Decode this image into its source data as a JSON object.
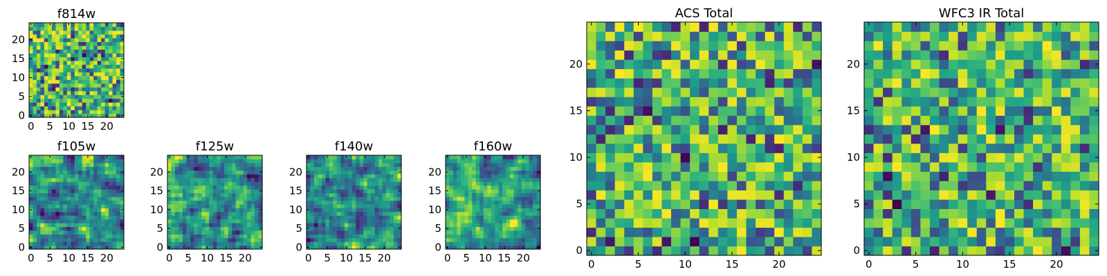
{
  "chart_data": [
    {
      "type": "heatmap",
      "title": "f814w",
      "grid_size": 25,
      "xlim": [
        0,
        24
      ],
      "ylim": [
        0,
        24
      ],
      "xticks": [
        0,
        5,
        10,
        15,
        20
      ],
      "yticks": [
        0,
        5,
        10,
        15,
        20
      ],
      "xlabel": "",
      "ylabel": "",
      "colormap": "viridis",
      "seed": 11,
      "texture": "noise"
    },
    {
      "type": "heatmap",
      "title": "f105w",
      "grid_size": 25,
      "xlim": [
        0,
        24
      ],
      "ylim": [
        0,
        24
      ],
      "xticks": [
        0,
        5,
        10,
        15,
        20
      ],
      "yticks": [
        0,
        5,
        10,
        15,
        20
      ],
      "xlabel": "",
      "ylabel": "",
      "colormap": "viridis",
      "seed": 23,
      "texture": "smooth"
    },
    {
      "type": "heatmap",
      "title": "f125w",
      "grid_size": 25,
      "xlim": [
        0,
        24
      ],
      "ylim": [
        0,
        24
      ],
      "xticks": [
        0,
        5,
        10,
        15,
        20
      ],
      "yticks": [
        0,
        5,
        10,
        15,
        20
      ],
      "xlabel": "",
      "ylabel": "",
      "colormap": "viridis",
      "seed": 37,
      "texture": "smooth"
    },
    {
      "type": "heatmap",
      "title": "f140w",
      "grid_size": 25,
      "xlim": [
        0,
        24
      ],
      "ylim": [
        0,
        24
      ],
      "xticks": [
        0,
        5,
        10,
        15,
        20
      ],
      "yticks": [
        0,
        5,
        10,
        15,
        20
      ],
      "xlabel": "",
      "ylabel": "",
      "colormap": "viridis",
      "seed": 41,
      "texture": "smooth"
    },
    {
      "type": "heatmap",
      "title": "f160w",
      "grid_size": 25,
      "xlim": [
        0,
        24
      ],
      "ylim": [
        0,
        24
      ],
      "xticks": [
        0,
        5,
        10,
        15,
        20
      ],
      "yticks": [
        0,
        5,
        10,
        15,
        20
      ],
      "xlabel": "",
      "ylabel": "",
      "colormap": "viridis",
      "seed": 53,
      "texture": "smooth"
    },
    {
      "type": "heatmap",
      "title": "ACS Total",
      "grid_size": 25,
      "xlim": [
        0,
        24
      ],
      "ylim": [
        0,
        24
      ],
      "xticks": [
        0,
        5,
        10,
        15,
        20
      ],
      "yticks": [
        0,
        5,
        10,
        15,
        20
      ],
      "xlabel": "",
      "ylabel": "",
      "colormap": "viridis",
      "seed": 67,
      "texture": "blocky"
    },
    {
      "type": "heatmap",
      "title": "WFC3 IR Total",
      "grid_size": 25,
      "xlim": [
        0,
        24
      ],
      "ylim": [
        0,
        24
      ],
      "xticks": [
        0,
        5,
        10,
        15,
        20
      ],
      "yticks": [
        0,
        5,
        10,
        15,
        20
      ],
      "xlabel": "",
      "ylabel": "",
      "colormap": "viridis",
      "seed": 79,
      "texture": "blocky"
    }
  ]
}
